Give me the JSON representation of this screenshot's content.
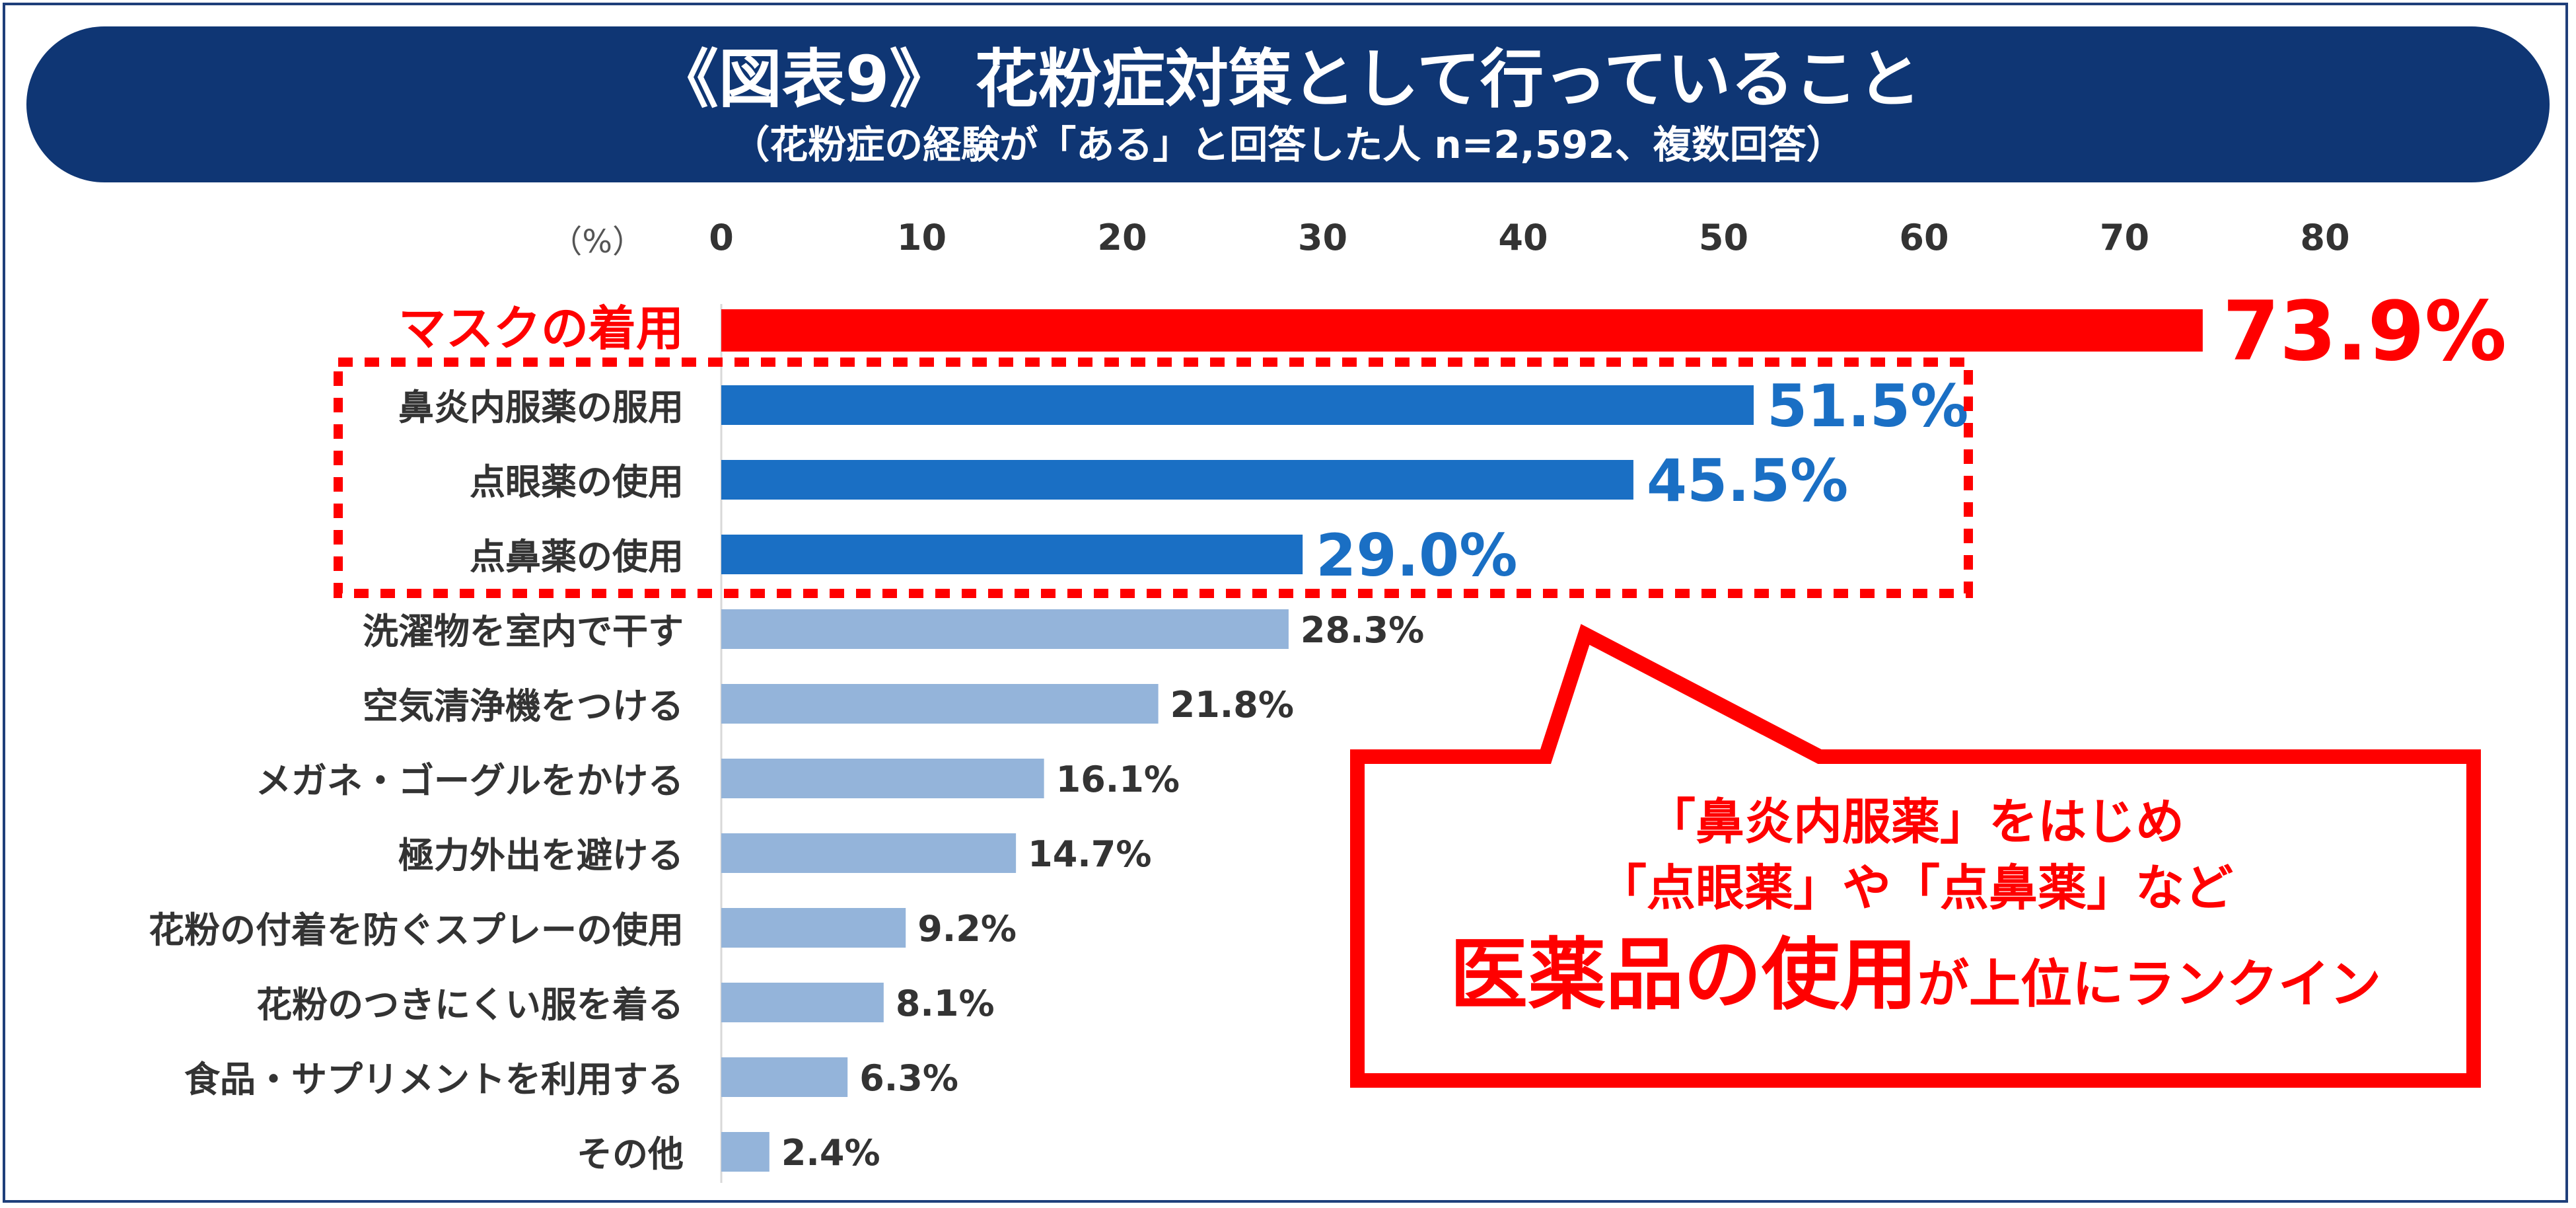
{
  "header": {
    "title": "《図表9》 花粉症対策として行っていること",
    "subtitle": "（花粉症の経験が「ある」と回答した人 n=2,592、複数回答）"
  },
  "colors": {
    "highlight": "#ff0000",
    "emphasis": "#1a6fc4",
    "normal": "#94b4da",
    "header_bg": "#0f3674"
  },
  "chart_data": {
    "type": "bar",
    "orientation": "horizontal",
    "unit_label": "（%）",
    "xlim": [
      0,
      80
    ],
    "ticks": [
      0,
      10,
      20,
      30,
      40,
      50,
      60,
      70,
      80
    ],
    "grid": false,
    "categories": [
      "マスクの着用",
      "鼻炎内服薬の服用",
      "点眼薬の使用",
      "点鼻薬の使用",
      "洗濯物を室内で干す",
      "空気清浄機をつける",
      "メガネ・ゴーグルをかける",
      "極力外出を避ける",
      "花粉の付着を防ぐスプレーの使用",
      "花粉のつきにくい服を着る",
      "食品・サプリメントを利用する",
      "その他"
    ],
    "values": [
      73.9,
      51.5,
      45.5,
      29.0,
      28.3,
      21.8,
      16.1,
      14.7,
      9.2,
      8.1,
      6.3,
      2.4
    ],
    "value_labels": [
      "73.9%",
      "51.5%",
      "45.5%",
      "29.0%",
      "28.3%",
      "21.8%",
      "16.1%",
      "14.7%",
      "9.2%",
      "8.1%",
      "6.3%",
      "2.4%"
    ],
    "styles": [
      "highlight",
      "emphasis",
      "emphasis",
      "emphasis",
      "normal",
      "normal",
      "normal",
      "normal",
      "normal",
      "normal",
      "normal",
      "normal"
    ]
  },
  "callout": {
    "line1": "「鼻炎内服薬」をはじめ",
    "line2": "「点眼薬」や「点鼻薬」など",
    "line3_emphasis": "医薬品の使用",
    "line3_rest": "が上位にランクイン"
  }
}
